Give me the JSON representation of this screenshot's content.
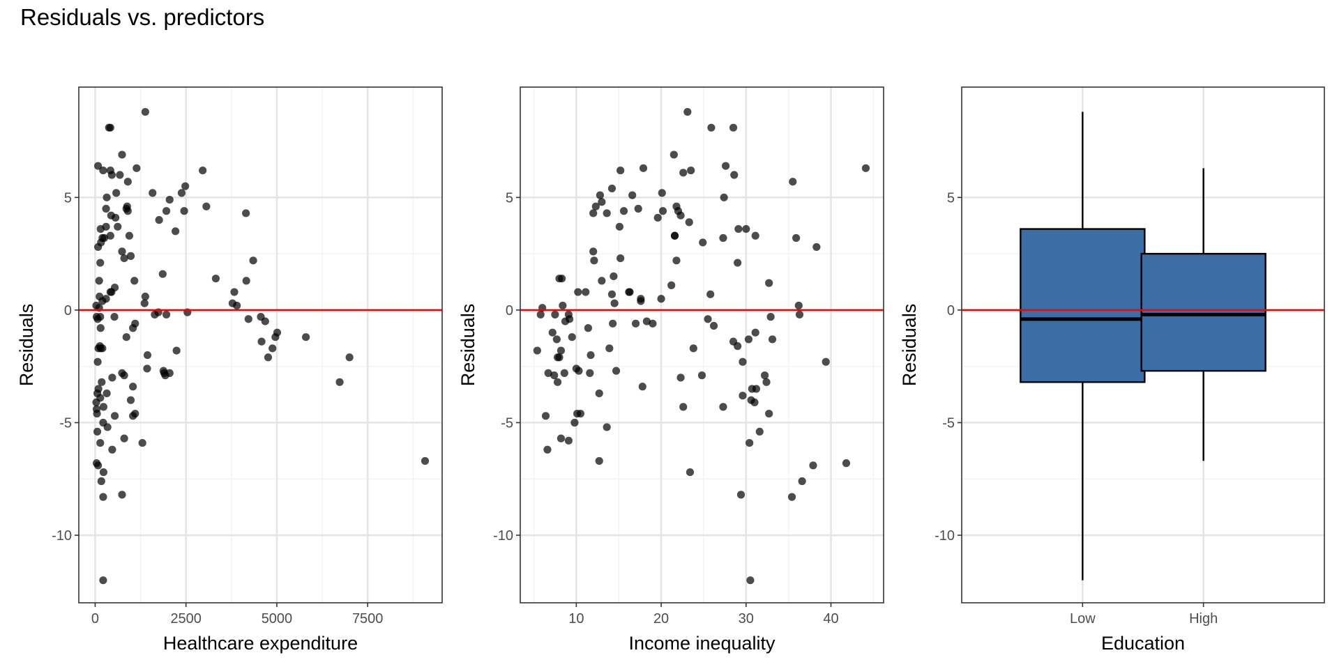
{
  "title": "Residuals vs. predictors",
  "colors": {
    "point": "#000000",
    "reference_line": "#ff0000",
    "box_fill": "#3a6ea5",
    "grid_major": "#e5e5e5",
    "grid_minor": "#f3f3f3",
    "panel_border": "#333333",
    "tick_label": "#4d4d4d"
  },
  "chart_data": [
    {
      "type": "scatter",
      "xlabel": "Healthcare expenditure",
      "ylabel": "Residuals",
      "xlim": [
        -450,
        9550
      ],
      "ylim": [
        -13.0,
        9.9
      ],
      "xticks": [
        0,
        2500,
        5000,
        7500
      ],
      "xtick_labels": [
        "0",
        "2500",
        "5000",
        "7500"
      ],
      "yticks": [
        -10,
        -5,
        0,
        5
      ],
      "ytick_labels": [
        "-10",
        "-5",
        "0",
        "5"
      ],
      "grid": true,
      "reference_line_y": 0,
      "points": [
        [
          380,
          8.1
        ],
        [
          420,
          8.1
        ],
        [
          1380,
          8.8
        ],
        [
          740,
          6.9
        ],
        [
          80,
          6.4
        ],
        [
          220,
          6.2
        ],
        [
          420,
          6.2
        ],
        [
          1140,
          6.3
        ],
        [
          460,
          6.0
        ],
        [
          680,
          6.0
        ],
        [
          900,
          5.7
        ],
        [
          2960,
          6.2
        ],
        [
          2480,
          5.5
        ],
        [
          2380,
          5.2
        ],
        [
          1580,
          5.2
        ],
        [
          320,
          5.0
        ],
        [
          580,
          5.2
        ],
        [
          2050,
          4.9
        ],
        [
          880,
          4.6
        ],
        [
          3060,
          4.6
        ],
        [
          300,
          4.5
        ],
        [
          860,
          4.5
        ],
        [
          900,
          4.4
        ],
        [
          2450,
          4.4
        ],
        [
          1960,
          4.4
        ],
        [
          440,
          4.2
        ],
        [
          560,
          4.1
        ],
        [
          4150,
          4.3
        ],
        [
          1760,
          4.0
        ],
        [
          620,
          3.7
        ],
        [
          150,
          3.6
        ],
        [
          300,
          3.7
        ],
        [
          2210,
          3.5
        ],
        [
          420,
          3.3
        ],
        [
          940,
          3.3
        ],
        [
          200,
          3.2
        ],
        [
          250,
          3.2
        ],
        [
          160,
          3.0
        ],
        [
          80,
          2.8
        ],
        [
          740,
          2.6
        ],
        [
          4350,
          2.2
        ],
        [
          980,
          2.4
        ],
        [
          800,
          2.3
        ],
        [
          140,
          2.1
        ],
        [
          1860,
          1.6
        ],
        [
          3320,
          1.4
        ],
        [
          4160,
          1.3
        ],
        [
          1080,
          1.3
        ],
        [
          110,
          1.3
        ],
        [
          540,
          1.0
        ],
        [
          450,
          0.8
        ],
        [
          420,
          0.8
        ],
        [
          3830,
          0.8
        ],
        [
          1380,
          0.6
        ],
        [
          300,
          0.5
        ],
        [
          120,
          0.6
        ],
        [
          200,
          0.4
        ],
        [
          3780,
          0.3
        ],
        [
          1360,
          0.3
        ],
        [
          3900,
          0.2
        ],
        [
          110,
          0.1
        ],
        [
          30,
          0.2
        ],
        [
          2540,
          -0.1
        ],
        [
          1640,
          -0.2
        ],
        [
          1740,
          -0.1
        ],
        [
          1960,
          -0.2
        ],
        [
          40,
          -0.3
        ],
        [
          70,
          -0.4
        ],
        [
          140,
          -0.3
        ],
        [
          4560,
          -0.3
        ],
        [
          4220,
          -0.4
        ],
        [
          1100,
          -0.6
        ],
        [
          4680,
          -0.5
        ],
        [
          530,
          -0.3
        ],
        [
          150,
          -0.8
        ],
        [
          1040,
          -0.8
        ],
        [
          5010,
          -1.0
        ],
        [
          5800,
          -1.2
        ],
        [
          4960,
          -1.2
        ],
        [
          860,
          -1.2
        ],
        [
          4580,
          -1.4
        ],
        [
          130,
          -1.6
        ],
        [
          150,
          -1.7
        ],
        [
          200,
          -1.7
        ],
        [
          4880,
          -1.7
        ],
        [
          90,
          -1.7
        ],
        [
          2240,
          -1.8
        ],
        [
          1440,
          -2.0
        ],
        [
          4760,
          -2.1
        ],
        [
          7000,
          -2.1
        ],
        [
          70,
          -2.3
        ],
        [
          1430,
          -2.6
        ],
        [
          1880,
          -2.7
        ],
        [
          1900,
          -2.8
        ],
        [
          2050,
          -2.8
        ],
        [
          740,
          -2.8
        ],
        [
          800,
          -2.9
        ],
        [
          1930,
          -2.9
        ],
        [
          470,
          -3.0
        ],
        [
          180,
          -3.2
        ],
        [
          6730,
          -3.2
        ],
        [
          1040,
          -3.4
        ],
        [
          90,
          -3.5
        ],
        [
          60,
          -3.7
        ],
        [
          320,
          -3.7
        ],
        [
          140,
          -3.9
        ],
        [
          980,
          -4.0
        ],
        [
          30,
          -4.1
        ],
        [
          40,
          -4.4
        ],
        [
          230,
          -4.3
        ],
        [
          1100,
          -4.6
        ],
        [
          50,
          -4.6
        ],
        [
          1040,
          -4.7
        ],
        [
          540,
          -4.7
        ],
        [
          220,
          -5.0
        ],
        [
          340,
          -5.2
        ],
        [
          60,
          -5.4
        ],
        [
          800,
          -5.7
        ],
        [
          1300,
          -5.9
        ],
        [
          140,
          -5.9
        ],
        [
          470,
          -6.2
        ],
        [
          40,
          -6.8
        ],
        [
          9080,
          -6.7
        ],
        [
          80,
          -6.9
        ],
        [
          230,
          -7.2
        ],
        [
          170,
          -7.6
        ],
        [
          220,
          -8.3
        ],
        [
          740,
          -8.2
        ],
        [
          220,
          -12.0
        ]
      ]
    },
    {
      "type": "scatter",
      "xlabel": "Income inequality",
      "ylabel": "Residuals",
      "xlim": [
        3.4,
        46.2
      ],
      "ylim": [
        -13.0,
        9.9
      ],
      "xticks": [
        10,
        20,
        30,
        40
      ],
      "xtick_labels": [
        "10",
        "20",
        "30",
        "40"
      ],
      "yticks": [
        -10,
        -5,
        0,
        5
      ],
      "ytick_labels": [
        "-10",
        "-5",
        "0",
        "5"
      ],
      "grid": true,
      "reference_line_y": 0,
      "points": [
        [
          23.1,
          8.8
        ],
        [
          25.9,
          8.1
        ],
        [
          28.5,
          8.1
        ],
        [
          21.5,
          6.9
        ],
        [
          27.6,
          6.4
        ],
        [
          44.1,
          6.3
        ],
        [
          15.2,
          6.2
        ],
        [
          17.9,
          6.3
        ],
        [
          23.5,
          6.2
        ],
        [
          22.6,
          6.1
        ],
        [
          28.6,
          6.0
        ],
        [
          35.5,
          5.7
        ],
        [
          14.2,
          5.4
        ],
        [
          12.8,
          5.1
        ],
        [
          16.6,
          5.1
        ],
        [
          20.1,
          5.2
        ],
        [
          27.4,
          5.0
        ],
        [
          13.0,
          4.8
        ],
        [
          12.3,
          4.6
        ],
        [
          21.8,
          4.6
        ],
        [
          22.0,
          4.4
        ],
        [
          12.0,
          4.3
        ],
        [
          15.6,
          4.4
        ],
        [
          17.3,
          4.5
        ],
        [
          20.2,
          4.4
        ],
        [
          22.3,
          4.2
        ],
        [
          13.6,
          4.3
        ],
        [
          19.6,
          4.1
        ],
        [
          15.1,
          3.7
        ],
        [
          23.3,
          3.9
        ],
        [
          29.1,
          3.6
        ],
        [
          30.0,
          3.6
        ],
        [
          21.6,
          3.3
        ],
        [
          21.6,
          3.3
        ],
        [
          31.1,
          3.3
        ],
        [
          27.3,
          3.2
        ],
        [
          35.9,
          3.2
        ],
        [
          24.9,
          3.0
        ],
        [
          38.3,
          2.8
        ],
        [
          12.0,
          2.6
        ],
        [
          15.2,
          2.3
        ],
        [
          12.1,
          2.2
        ],
        [
          21.8,
          2.2
        ],
        [
          29.0,
          2.1
        ],
        [
          14.4,
          1.5
        ],
        [
          13.0,
          1.3
        ],
        [
          32.7,
          1.2
        ],
        [
          8.3,
          1.4
        ],
        [
          8.0,
          1.4
        ],
        [
          21.2,
          1.1
        ],
        [
          16.2,
          0.8
        ],
        [
          16.3,
          0.8
        ],
        [
          10.2,
          0.8
        ],
        [
          11.1,
          0.8
        ],
        [
          14.2,
          0.7
        ],
        [
          25.8,
          0.7
        ],
        [
          17.6,
          0.5
        ],
        [
          20.0,
          0.5
        ],
        [
          17.6,
          0.4
        ],
        [
          14.5,
          0.3
        ],
        [
          36.2,
          0.2
        ],
        [
          8.4,
          0.2
        ],
        [
          6.0,
          0.1
        ],
        [
          5.8,
          -0.2
        ],
        [
          7.5,
          -0.2
        ],
        [
          9.1,
          -0.2
        ],
        [
          9.2,
          -0.4
        ],
        [
          36.3,
          -0.2
        ],
        [
          8.7,
          -0.5
        ],
        [
          25.5,
          -0.4
        ],
        [
          18.3,
          -0.5
        ],
        [
          19.0,
          -0.6
        ],
        [
          32.9,
          -0.3
        ],
        [
          26.2,
          -0.7
        ],
        [
          17.0,
          -0.6
        ],
        [
          14.3,
          -0.6
        ],
        [
          11.4,
          -0.8
        ],
        [
          7.2,
          -1.0
        ],
        [
          31.1,
          -1.0
        ],
        [
          30.3,
          -1.3
        ],
        [
          9.5,
          -1.2
        ],
        [
          28.5,
          -1.4
        ],
        [
          7.7,
          -1.3
        ],
        [
          33.1,
          -1.3
        ],
        [
          29.0,
          -1.6
        ],
        [
          23.8,
          -1.7
        ],
        [
          5.4,
          -1.8
        ],
        [
          8.2,
          -1.8
        ],
        [
          13.9,
          -1.7
        ],
        [
          11.7,
          -2.0
        ],
        [
          8.0,
          -2.1
        ],
        [
          7.8,
          -2.1
        ],
        [
          29.6,
          -2.3
        ],
        [
          39.4,
          -2.3
        ],
        [
          10.0,
          -2.6
        ],
        [
          10.3,
          -2.7
        ],
        [
          14.7,
          -2.7
        ],
        [
          11.6,
          -2.8
        ],
        [
          6.7,
          -2.8
        ],
        [
          8.6,
          -2.8
        ],
        [
          7.4,
          -2.9
        ],
        [
          24.8,
          -2.9
        ],
        [
          22.3,
          -3.0
        ],
        [
          32.2,
          -2.9
        ],
        [
          32.4,
          -3.2
        ],
        [
          7.8,
          -3.2
        ],
        [
          17.8,
          -3.4
        ],
        [
          30.7,
          -3.5
        ],
        [
          31.2,
          -3.5
        ],
        [
          12.7,
          -3.7
        ],
        [
          29.6,
          -3.8
        ],
        [
          30.6,
          -4.0
        ],
        [
          31.0,
          -4.1
        ],
        [
          27.3,
          -4.3
        ],
        [
          22.6,
          -4.3
        ],
        [
          10.1,
          -4.6
        ],
        [
          10.5,
          -4.6
        ],
        [
          6.4,
          -4.7
        ],
        [
          32.7,
          -4.6
        ],
        [
          9.8,
          -5.0
        ],
        [
          13.6,
          -5.2
        ],
        [
          31.6,
          -5.4
        ],
        [
          8.2,
          -5.7
        ],
        [
          9.1,
          -5.8
        ],
        [
          30.4,
          -5.9
        ],
        [
          6.6,
          -6.2
        ],
        [
          12.7,
          -6.7
        ],
        [
          41.8,
          -6.8
        ],
        [
          37.9,
          -6.9
        ],
        [
          23.4,
          -7.2
        ],
        [
          36.6,
          -7.6
        ],
        [
          29.4,
          -8.2
        ],
        [
          35.4,
          -8.3
        ],
        [
          30.5,
          -12.0
        ]
      ]
    },
    {
      "type": "box",
      "xlabel": "Education",
      "ylabel": "Residuals",
      "ylim": [
        -13.0,
        9.9
      ],
      "categories": [
        "Low",
        "High"
      ],
      "yticks": [
        -10,
        -5,
        0,
        5
      ],
      "ytick_labels": [
        "-10",
        "-5",
        "0",
        "5"
      ],
      "grid": true,
      "reference_line_y": 0,
      "boxes": [
        {
          "category": "Low",
          "whisker_low": -12.0,
          "q1": -3.2,
          "median": -0.4,
          "q3": 3.6,
          "whisker_high": 8.8
        },
        {
          "category": "High",
          "whisker_low": -6.7,
          "q1": -2.7,
          "median": -0.2,
          "q3": 2.5,
          "whisker_high": 6.3
        }
      ]
    }
  ]
}
